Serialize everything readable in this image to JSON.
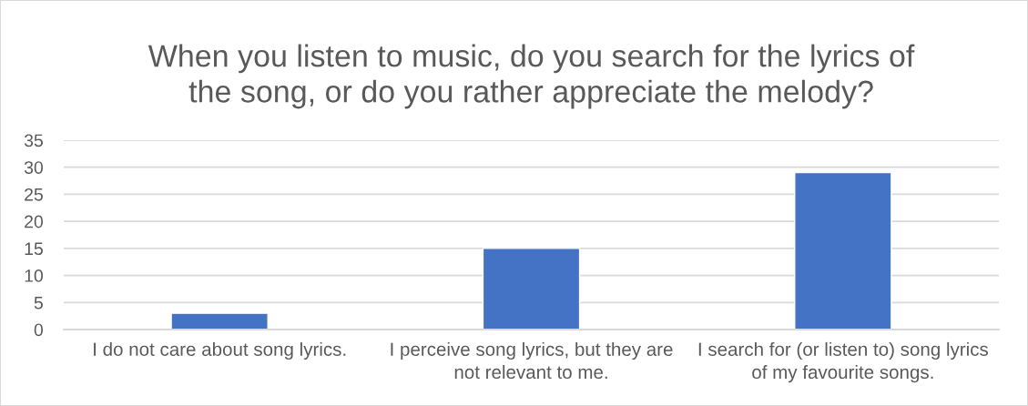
{
  "chart_data": {
    "type": "bar",
    "title": "When you listen to music, do you search for the lyrics of\nthe song, or do you rather appreciate the melody?",
    "categories": [
      "I do not care about song lyrics.",
      "I perceive song lyrics, but they are\nnot relevant to me.",
      "I search for (or listen to) song lyrics\nof my favourite songs."
    ],
    "values": [
      3,
      15,
      29
    ],
    "color": "#4472c4",
    "ylim": [
      0,
      35
    ],
    "yticks": [
      0,
      5,
      10,
      15,
      20,
      25,
      30,
      35
    ],
    "grid": "y"
  }
}
